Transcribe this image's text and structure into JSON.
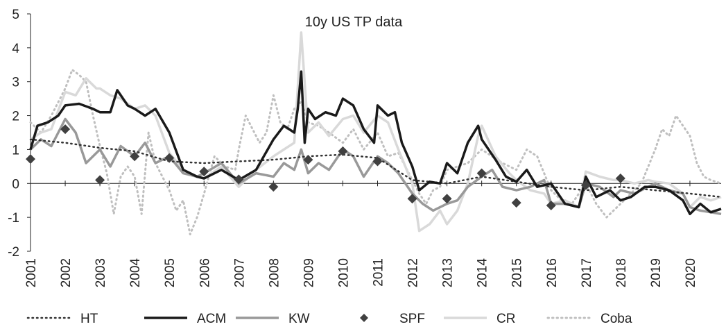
{
  "chart_data": {
    "type": "line",
    "title": "10y US TP data",
    "xlabel": "",
    "ylabel": "",
    "ylim": [
      -2,
      5
    ],
    "xlim": [
      2001,
      2020.9
    ],
    "y_ticks": [
      "-2",
      "-1",
      "0",
      "1",
      "2",
      "3",
      "4",
      "5"
    ],
    "x_ticks": [
      "2001",
      "2002",
      "2003",
      "2004",
      "2005",
      "2006",
      "2007",
      "2008",
      "2009",
      "2010",
      "2011",
      "2012",
      "2013",
      "2014",
      "2015",
      "2016",
      "2017",
      "2018",
      "2019",
      "2020"
    ],
    "grid": false,
    "legend_position": "bottom",
    "series": [
      {
        "name": "HT",
        "style": "dotted",
        "color": "#333333",
        "width": 2.5,
        "x": [
          2001,
          2002,
          2003,
          2004,
          2005,
          2006,
          2007,
          2008,
          2009,
          2010,
          2011,
          2012,
          2013,
          2014,
          2015,
          2016,
          2017,
          2018,
          2019,
          2020,
          2020.9
        ],
        "y": [
          1.3,
          1.2,
          1.05,
          0.95,
          0.65,
          0.6,
          0.65,
          0.7,
          0.8,
          0.85,
          0.75,
          0.1,
          0.0,
          0.2,
          0.05,
          -0.1,
          -0.2,
          -0.1,
          -0.2,
          -0.3,
          -0.4
        ]
      },
      {
        "name": "ACM",
        "style": "solid",
        "color": "#1a1a1a",
        "width": 3.5,
        "x": [
          2001,
          2001.2,
          2001.5,
          2001.8,
          2002,
          2002.4,
          2002.8,
          2003,
          2003.3,
          2003.5,
          2003.8,
          2004,
          2004.3,
          2004.6,
          2005,
          2005.4,
          2005.8,
          2006,
          2006.5,
          2007,
          2007.5,
          2008,
          2008.3,
          2008.6,
          2008.7,
          2008.8,
          2008.9,
          2009,
          2009.2,
          2009.5,
          2009.8,
          2010,
          2010.3,
          2010.6,
          2010.9,
          2011,
          2011.3,
          2011.5,
          2011.7,
          2012,
          2012.2,
          2012.5,
          2012.8,
          2013,
          2013.3,
          2013.6,
          2013.9,
          2014,
          2014.4,
          2014.7,
          2015,
          2015.3,
          2015.6,
          2016,
          2016.4,
          2016.8,
          2017,
          2017.3,
          2017.7,
          2018,
          2018.3,
          2018.7,
          2019,
          2019.4,
          2019.8,
          2020,
          2020.3,
          2020.6,
          2020.9
        ],
        "y": [
          1.0,
          1.7,
          1.8,
          2.0,
          2.3,
          2.35,
          2.2,
          2.1,
          2.1,
          2.75,
          2.3,
          2.2,
          2.0,
          2.2,
          1.5,
          0.4,
          0.2,
          0.15,
          0.4,
          0.1,
          0.4,
          1.3,
          1.7,
          1.5,
          2.2,
          3.3,
          1.2,
          2.2,
          1.9,
          2.1,
          2.0,
          2.5,
          2.3,
          1.6,
          1.2,
          2.3,
          2.0,
          2.1,
          1.2,
          0.5,
          -0.2,
          0.05,
          0.0,
          0.6,
          0.3,
          1.2,
          1.7,
          1.3,
          0.7,
          0.2,
          0.05,
          0.4,
          -0.1,
          0.0,
          -0.6,
          -0.7,
          0.2,
          -0.4,
          -0.2,
          -0.5,
          -0.4,
          -0.1,
          -0.1,
          -0.2,
          -0.5,
          -0.9,
          -0.6,
          -0.85,
          -0.75
        ]
      },
      {
        "name": "KW",
        "style": "solid",
        "color": "#999999",
        "width": 3.5,
        "x": [
          2001,
          2001.3,
          2001.6,
          2002,
          2002.3,
          2002.6,
          2003,
          2003.3,
          2003.6,
          2004,
          2004.3,
          2004.6,
          2005,
          2005.4,
          2005.8,
          2006,
          2006.5,
          2007,
          2007.5,
          2008,
          2008.3,
          2008.6,
          2008.8,
          2009,
          2009.3,
          2009.6,
          2010,
          2010.3,
          2010.6,
          2011,
          2011.3,
          2011.6,
          2012,
          2012.3,
          2012.6,
          2013,
          2013.3,
          2013.6,
          2014,
          2014.3,
          2014.6,
          2015,
          2015.4,
          2015.8,
          2016,
          2016.4,
          2016.8,
          2017,
          2017.4,
          2017.8,
          2018,
          2018.4,
          2018.8,
          2019,
          2019.4,
          2019.8,
          2020,
          2020.3,
          2020.6,
          2020.9
        ],
        "y": [
          1.0,
          1.3,
          1.1,
          1.9,
          1.5,
          0.6,
          1.0,
          0.5,
          1.1,
          0.8,
          1.2,
          0.6,
          0.8,
          0.3,
          0.2,
          0.3,
          0.6,
          0.0,
          0.3,
          0.2,
          0.6,
          0.4,
          1.0,
          0.3,
          0.6,
          0.4,
          1.0,
          0.8,
          0.2,
          0.8,
          0.6,
          0.3,
          -0.3,
          -0.6,
          -0.8,
          -0.6,
          -0.5,
          -0.1,
          0.2,
          0.4,
          -0.1,
          -0.2,
          -0.1,
          0.1,
          -0.6,
          -0.6,
          -0.7,
          0.0,
          -0.1,
          -0.4,
          -0.2,
          -0.3,
          -0.1,
          0.0,
          -0.2,
          -0.3,
          -0.7,
          -0.8,
          -0.85,
          -0.9
        ]
      },
      {
        "name": "CR",
        "style": "solid",
        "color": "#d9d9d9",
        "width": 3.5,
        "x": [
          2001,
          2001.3,
          2001.6,
          2002,
          2002.3,
          2002.6,
          2002.9,
          2003,
          2003.3,
          2003.6,
          2004,
          2004.3,
          2004.6,
          2005,
          2005.4,
          2005.8,
          2006,
          2006.5,
          2007,
          2007.5,
          2008,
          2008.3,
          2008.6,
          2008.8,
          2009,
          2009.3,
          2009.6,
          2010,
          2010.3,
          2010.6,
          2011,
          2011.3,
          2011.6,
          2012,
          2012.2,
          2012.5,
          2012.8,
          2013,
          2013.3,
          2013.6,
          2013.9,
          2014,
          2014.4,
          2014.8,
          2015,
          2015.4,
          2015.8,
          2016,
          2016.4,
          2016.8,
          2017,
          2017.4,
          2017.8,
          2018,
          2018.4,
          2018.8,
          2019,
          2019.4,
          2019.8,
          2020,
          2020.3,
          2020.6,
          2020.9
        ],
        "y": [
          1.3,
          1.5,
          1.6,
          2.7,
          2.6,
          3.1,
          2.8,
          2.8,
          2.6,
          2.5,
          2.2,
          2.3,
          2.0,
          0.9,
          0.4,
          0.2,
          0.15,
          0.5,
          -0.1,
          0.4,
          0.8,
          1.0,
          1.2,
          4.45,
          1.5,
          1.8,
          1.4,
          1.9,
          2.0,
          1.5,
          2.0,
          1.8,
          1.0,
          0.0,
          -1.4,
          -1.2,
          -0.8,
          -1.2,
          -0.8,
          0.0,
          1.4,
          1.7,
          0.8,
          0.3,
          0.1,
          -0.2,
          -0.3,
          -0.6,
          -0.5,
          -0.7,
          0.35,
          0.2,
          0.1,
          0.1,
          0.0,
          0.1,
          0.05,
          0.0,
          -0.3,
          -0.7,
          -0.4,
          -0.5,
          -0.4
        ]
      },
      {
        "name": "Coba",
        "style": "dotted",
        "color": "#bfbfbf",
        "width": 3,
        "x": [
          2001,
          2001.3,
          2001.6,
          2002,
          2002.2,
          2002.4,
          2002.6,
          2002.8,
          2003,
          2003.2,
          2003.4,
          2003.6,
          2003.8,
          2004,
          2004.2,
          2004.4,
          2004.6,
          2004.8,
          2005,
          2005.2,
          2005.4,
          2005.6,
          2005.8,
          2006,
          2006.3,
          2006.6,
          2006.9,
          2007,
          2007.2,
          2007.4,
          2007.6,
          2007.8,
          2008,
          2008.2,
          2008.4,
          2008.6,
          2008.8,
          2009,
          2009.3,
          2009.6,
          2010,
          2010.3,
          2010.6,
          2011,
          2011.3,
          2011.6,
          2012,
          2012.2,
          2012.4,
          2012.6,
          2012.8,
          2013,
          2013.3,
          2013.6,
          2014,
          2014.3,
          2014.6,
          2015,
          2015.3,
          2015.6,
          2016,
          2016.3,
          2016.6,
          2017,
          2017.3,
          2017.6,
          2018,
          2018.3,
          2018.6,
          2019,
          2019.2,
          2019.4,
          2019.6,
          2019.8,
          2020,
          2020.2,
          2020.4,
          2020.6,
          2020.9
        ],
        "y": [
          1.8,
          1.5,
          2.0,
          2.8,
          3.35,
          3.2,
          3.0,
          2.0,
          1.1,
          0.3,
          -0.9,
          0.2,
          0.5,
          0.2,
          -0.9,
          1.5,
          0.6,
          0.2,
          -0.2,
          -0.8,
          -0.5,
          -1.5,
          -1.0,
          -0.3,
          0.8,
          0.5,
          0.4,
          1.0,
          2.0,
          1.6,
          1.2,
          1.5,
          2.6,
          1.8,
          1.6,
          2.2,
          2.4,
          1.8,
          1.7,
          1.5,
          1.2,
          1.6,
          1.0,
          1.5,
          0.8,
          0.9,
          0.1,
          -0.3,
          -0.6,
          -0.2,
          -0.1,
          0.4,
          0.5,
          0.6,
          1.0,
          0.8,
          0.6,
          0.4,
          1.0,
          0.8,
          -0.2,
          -0.5,
          -0.6,
          0.0,
          -0.6,
          -1.0,
          -0.6,
          -0.3,
          0.0,
          1.0,
          1.6,
          1.4,
          2.0,
          1.7,
          1.4,
          0.6,
          0.2,
          0.1,
          0.0
        ]
      }
    ],
    "markers": {
      "name": "SPF",
      "shape": "diamond",
      "color": "#404040",
      "x": [
        2001,
        2002,
        2003,
        2004,
        2005,
        2006,
        2007,
        2008,
        2009,
        2010,
        2011,
        2012,
        2013,
        2014,
        2015,
        2016,
        2017,
        2018
      ],
      "y": [
        0.72,
        1.6,
        0.1,
        0.8,
        0.75,
        0.35,
        0.12,
        -0.1,
        0.7,
        0.95,
        0.65,
        -0.45,
        -0.45,
        0.3,
        -0.57,
        -0.65,
        -0.05,
        0.15
      ]
    }
  }
}
